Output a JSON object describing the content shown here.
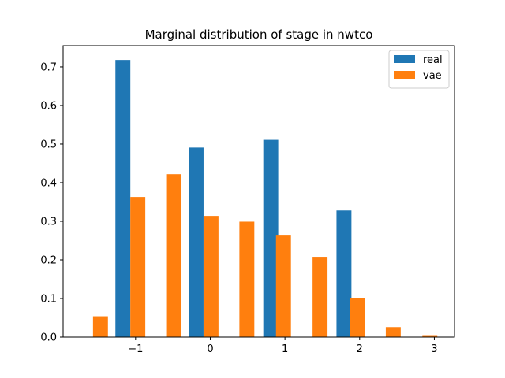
{
  "chart_data": {
    "type": "bar",
    "title": "Marginal distribution of stage in nwtco",
    "xlabel": "",
    "ylabel": "",
    "xlim": [
      -1.97,
      3.27
    ],
    "ylim": [
      0,
      0.755
    ],
    "x_ticks": [
      -1,
      0,
      1,
      2,
      3
    ],
    "x_tick_labels": [
      "−1",
      "0",
      "1",
      "2",
      "3"
    ],
    "y_ticks": [
      0.0,
      0.1,
      0.2,
      0.3,
      0.4,
      0.5,
      0.6,
      0.7
    ],
    "y_tick_labels": [
      "0.0",
      "0.1",
      "0.2",
      "0.3",
      "0.4",
      "0.5",
      "0.6",
      "0.7"
    ],
    "grid": false,
    "legend_position": "top-right",
    "series": [
      {
        "name": "real",
        "color": "#1f77b4",
        "bars": [
          {
            "x_left": -1.27,
            "x_right": -1.07,
            "value": 0.718
          },
          {
            "x_left": -0.29,
            "x_right": -0.09,
            "value": 0.491
          },
          {
            "x_left": 0.71,
            "x_right": 0.91,
            "value": 0.511
          },
          {
            "x_left": 1.69,
            "x_right": 1.89,
            "value": 0.328
          }
        ]
      },
      {
        "name": "vae",
        "color": "#ff7f0e",
        "bars": [
          {
            "x_left": -1.57,
            "x_right": -1.37,
            "value": 0.054
          },
          {
            "x_left": -1.07,
            "x_right": -0.87,
            "value": 0.363
          },
          {
            "x_left": -0.58,
            "x_right": -0.39,
            "value": 0.422
          },
          {
            "x_left": -0.09,
            "x_right": 0.11,
            "value": 0.314
          },
          {
            "x_left": 0.39,
            "x_right": 0.59,
            "value": 0.299
          },
          {
            "x_left": 0.88,
            "x_right": 1.08,
            "value": 0.263
          },
          {
            "x_left": 1.37,
            "x_right": 1.57,
            "value": 0.208
          },
          {
            "x_left": 1.87,
            "x_right": 2.07,
            "value": 0.101
          },
          {
            "x_left": 2.35,
            "x_right": 2.55,
            "value": 0.026
          },
          {
            "x_left": 2.84,
            "x_right": 3.04,
            "value": 0.003
          }
        ]
      }
    ]
  }
}
